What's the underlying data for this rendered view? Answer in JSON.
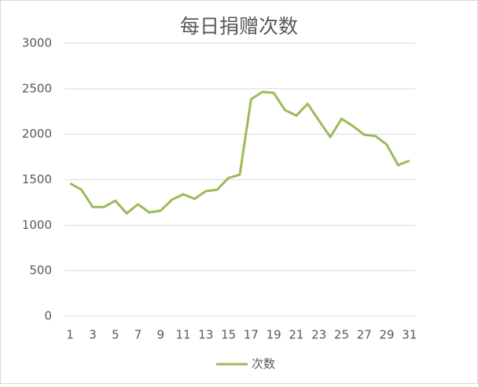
{
  "chart_data": {
    "type": "line",
    "title": "每日捐赠次数",
    "categories": [
      "1",
      null,
      "3",
      null,
      "5",
      null,
      "7",
      null,
      "9",
      null,
      "11",
      null,
      "13",
      null,
      "15",
      null,
      "17",
      null,
      "19",
      null,
      "21",
      null,
      "23",
      null,
      "25",
      null,
      "27",
      null,
      "29",
      null,
      "31"
    ],
    "series": [
      {
        "name": "次数",
        "color": "#9bbb59",
        "values": [
          1460,
          1390,
          1200,
          1200,
          1270,
          1130,
          1230,
          1140,
          1160,
          1280,
          1340,
          1290,
          1375,
          1390,
          1520,
          1555,
          2385,
          2465,
          2455,
          2265,
          2205,
          2335,
          2150,
          1970,
          2170,
          2090,
          1995,
          1980,
          1885,
          1660,
          1710
        ]
      }
    ],
    "ylim": [
      0,
      3000
    ],
    "yticks": [
      0,
      500,
      1000,
      1500,
      2000,
      2500,
      3000
    ],
    "grid": true,
    "legend": "bottom"
  }
}
